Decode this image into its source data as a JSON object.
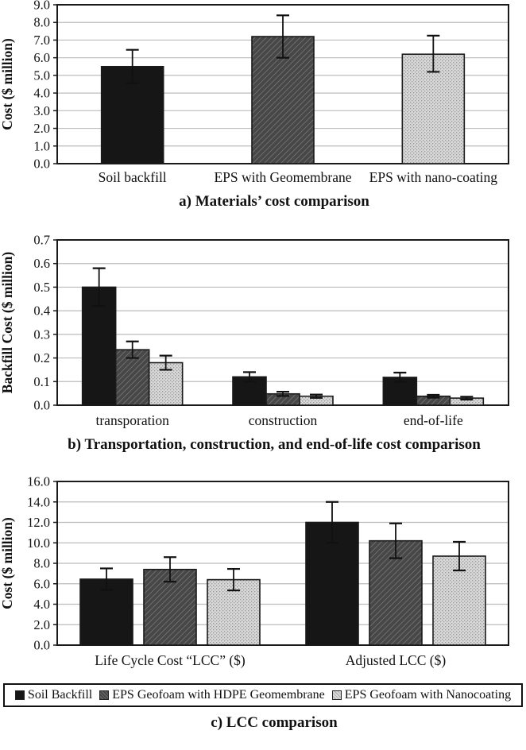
{
  "colors": {
    "bar_black": "#161616",
    "hatch_base": "#474747",
    "hatch_line": "#7e7e7e",
    "dots_base": "#d8d8d8",
    "dots_dot": "#979797",
    "grid": "#bcbcbc",
    "border": "#1a1a1a",
    "error_bar": "#111111"
  },
  "chart_data": [
    {
      "type": "bar",
      "title": "a) Materials’ cost comparison",
      "ylabel": "Cost ($ million)",
      "ylim": [
        0,
        9
      ],
      "ytick_step": 1,
      "grid": true,
      "legend_position": "none",
      "groups": [
        {
          "label": "Soil backfill",
          "bars": [
            {
              "style": "solid-black",
              "value": 5.5,
              "err_up": 0.95,
              "err_down": 0.95
            }
          ]
        },
        {
          "label": "EPS with Geomembrane",
          "bars": [
            {
              "style": "dark-hatch",
              "value": 7.2,
              "err_up": 1.2,
              "err_down": 1.2
            }
          ]
        },
        {
          "label": "EPS with nano-coating",
          "bars": [
            {
              "style": "light-dots",
              "value": 6.2,
              "err_up": 1.05,
              "err_down": 1.0
            }
          ]
        }
      ]
    },
    {
      "type": "bar",
      "title": "b) Transportation, construction, and end-of-life cost comparison",
      "ylabel": "Backfill Cost ($ million)",
      "ylim": [
        0,
        0.7
      ],
      "ytick_step": 0.1,
      "grid": true,
      "legend_position": "none",
      "groups": [
        {
          "label": "transporation",
          "bars": [
            {
              "style": "solid-black",
              "value": 0.5,
              "err_up": 0.08,
              "err_down": 0.08
            },
            {
              "style": "dark-hatch",
              "value": 0.235,
              "err_up": 0.035,
              "err_down": 0.035
            },
            {
              "style": "light-dots",
              "value": 0.18,
              "err_up": 0.03,
              "err_down": 0.03
            }
          ]
        },
        {
          "label": "construction",
          "bars": [
            {
              "style": "solid-black",
              "value": 0.12,
              "err_up": 0.02,
              "err_down": 0.02
            },
            {
              "style": "dark-hatch",
              "value": 0.048,
              "err_up": 0.009,
              "err_down": 0.009
            },
            {
              "style": "light-dots",
              "value": 0.038,
              "err_up": 0.007,
              "err_down": 0.007
            }
          ]
        },
        {
          "label": "end-of-life",
          "bars": [
            {
              "style": "solid-black",
              "value": 0.118,
              "err_up": 0.02,
              "err_down": 0.02
            },
            {
              "style": "dark-hatch",
              "value": 0.038,
              "err_up": 0.006,
              "err_down": 0.006
            },
            {
              "style": "light-dots",
              "value": 0.03,
              "err_up": 0.006,
              "err_down": 0.006
            }
          ]
        }
      ]
    },
    {
      "type": "bar",
      "title": "c) LCC comparison",
      "ylabel": "Cost ($ million)",
      "ylim": [
        0,
        16
      ],
      "ytick_step": 2,
      "grid": true,
      "legend_position": "bottom",
      "legend": {
        "items": [
          {
            "label": "Soil Backfill",
            "style": "solid-black"
          },
          {
            "label": "EPS Geofoam with HDPE Geomembrane",
            "style": "dark-hatch"
          },
          {
            "label": "EPS Geofoam with Nanocoating",
            "style": "light-dots"
          }
        ]
      },
      "groups": [
        {
          "label": "Life Cycle Cost “LCC” ($)",
          "bars": [
            {
              "style": "solid-black",
              "value": 6.45,
              "err_up": 1.05,
              "err_down": 1.05
            },
            {
              "style": "dark-hatch",
              "value": 7.4,
              "err_up": 1.2,
              "err_down": 1.2
            },
            {
              "style": "light-dots",
              "value": 6.4,
              "err_up": 1.05,
              "err_down": 1.05
            }
          ]
        },
        {
          "label": "Adjusted LCC ($)",
          "bars": [
            {
              "style": "solid-black",
              "value": 12.0,
              "err_up": 2.0,
              "err_down": 2.0
            },
            {
              "style": "dark-hatch",
              "value": 10.2,
              "err_up": 1.7,
              "err_down": 1.7
            },
            {
              "style": "light-dots",
              "value": 8.7,
              "err_up": 1.4,
              "err_down": 1.4
            }
          ]
        }
      ]
    }
  ]
}
